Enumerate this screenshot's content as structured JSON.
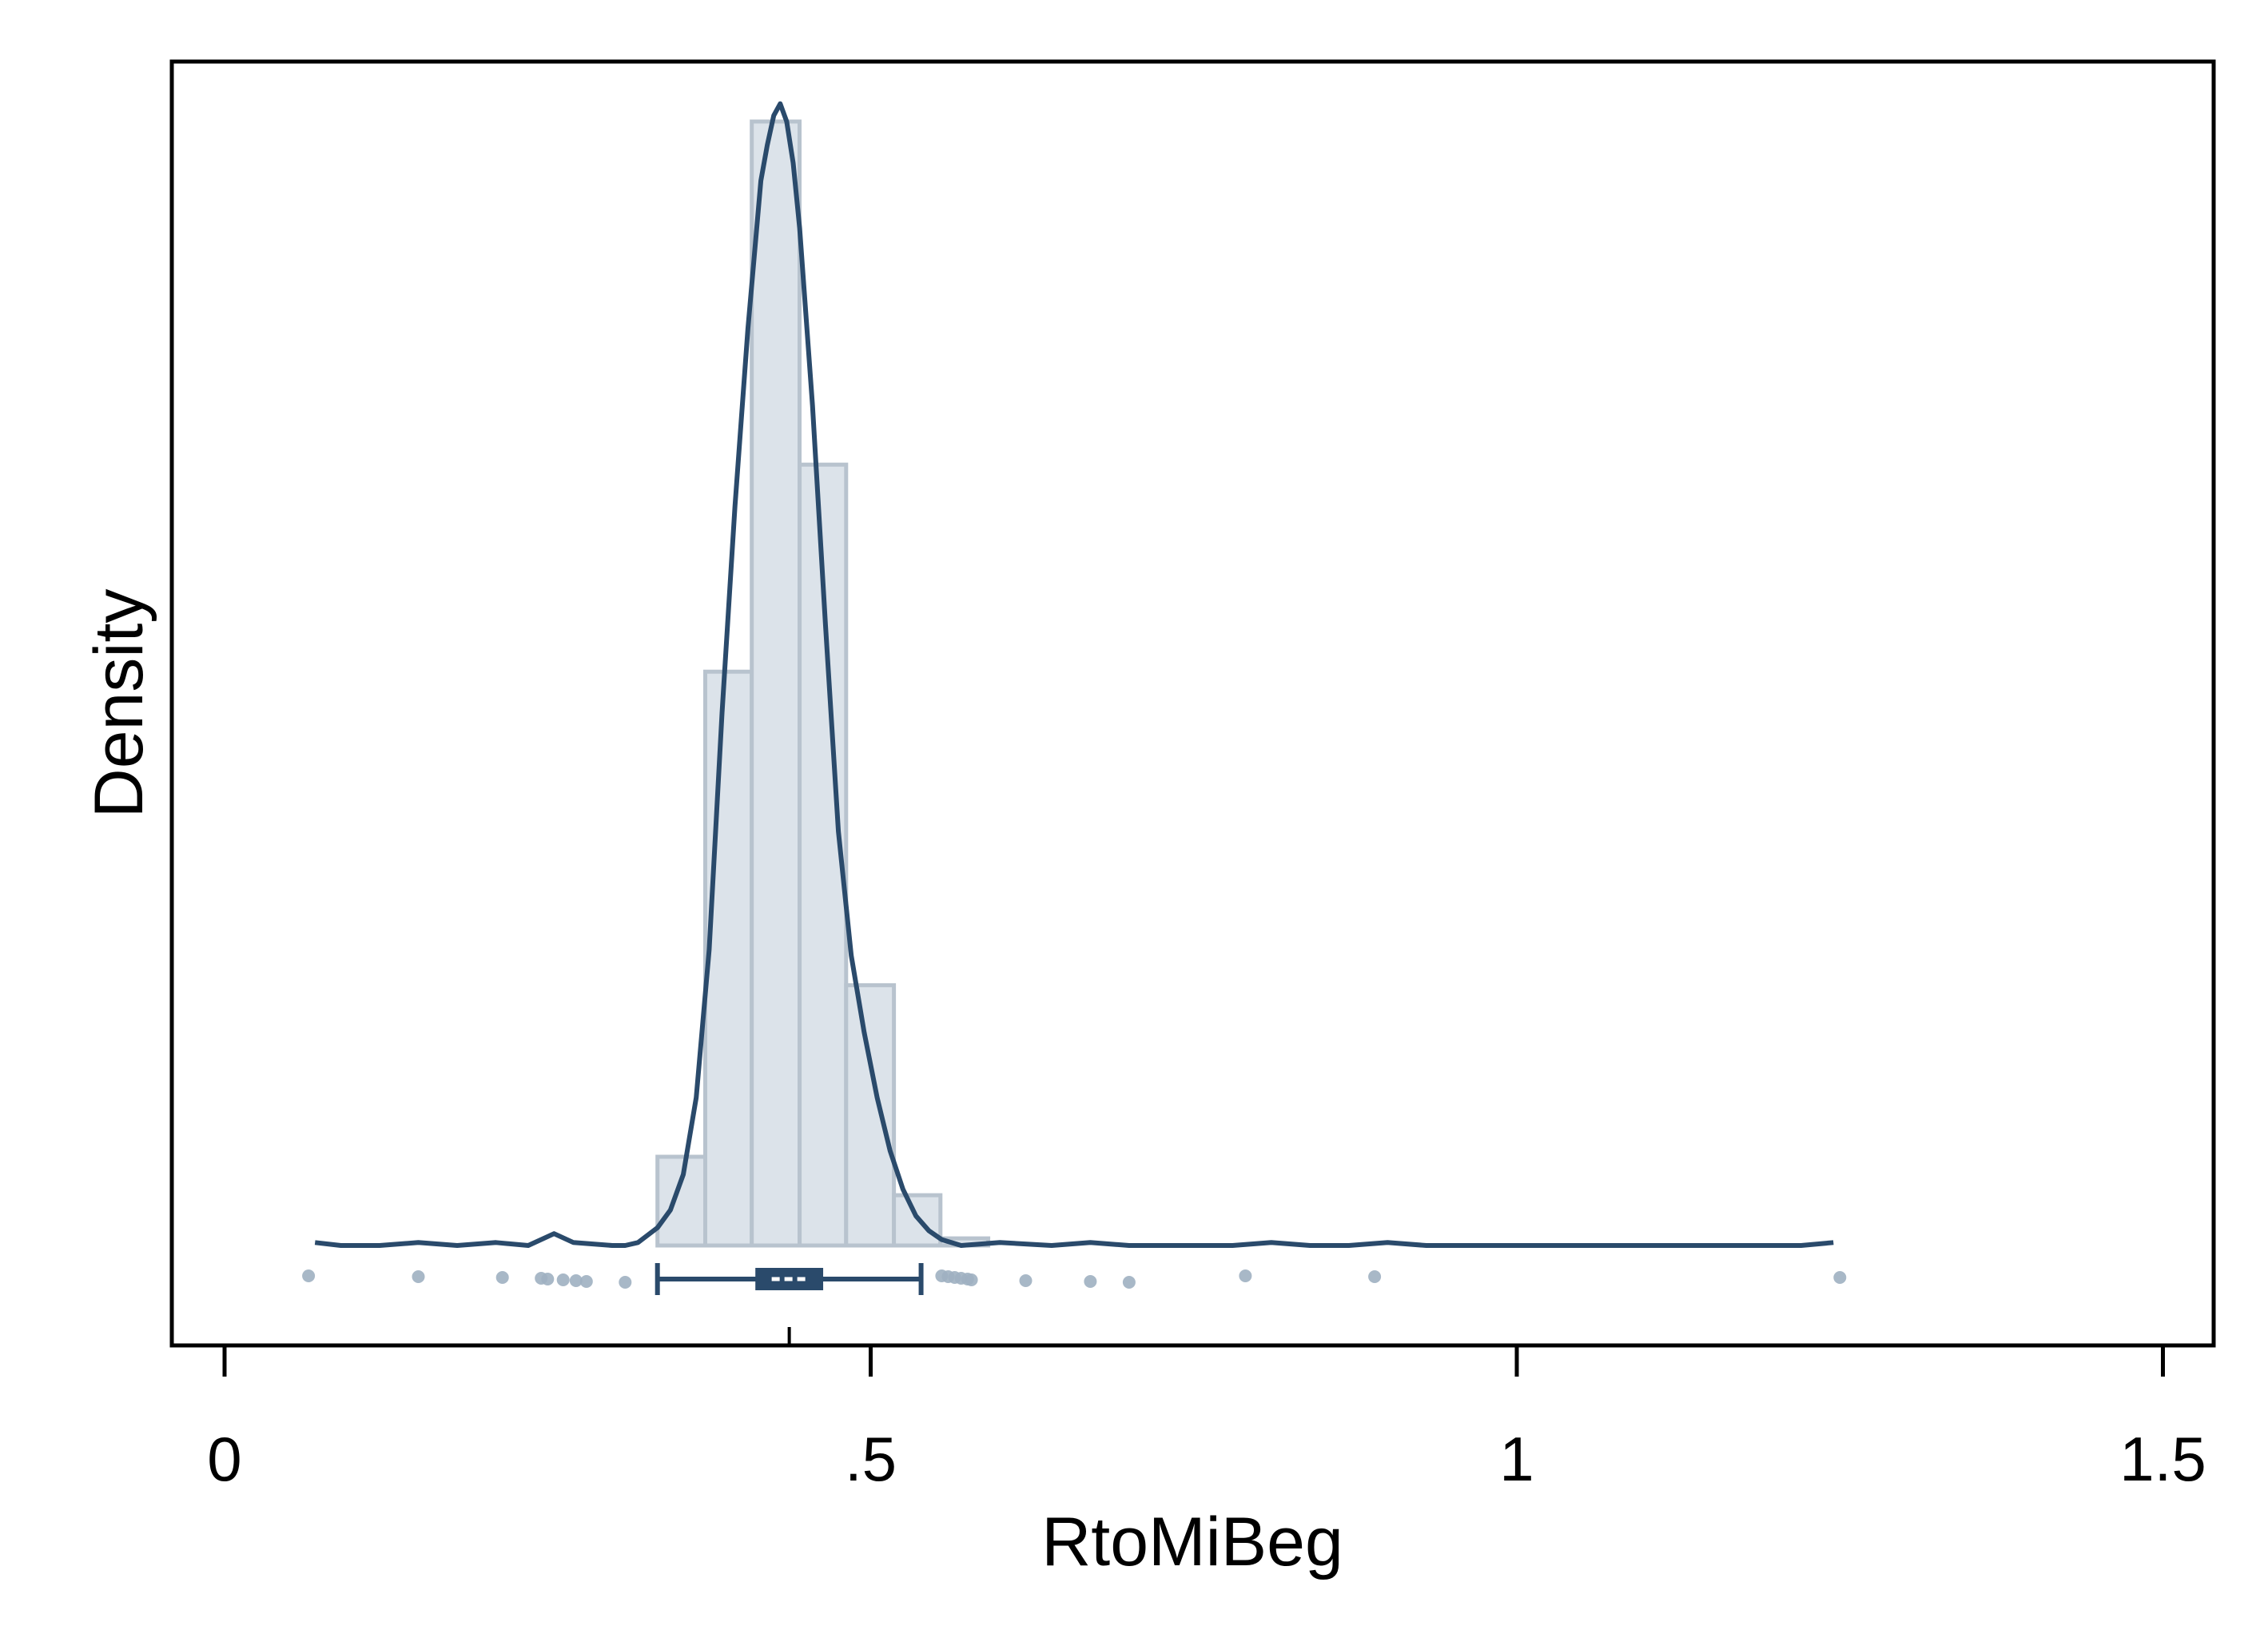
{
  "chart_data": {
    "type": "histogram",
    "xlabel": "RtoMiBeg",
    "ylabel": "Density",
    "xlim": [
      -0.04,
      1.54
    ],
    "x_ticks": [
      {
        "value": 0,
        "label": "0"
      },
      {
        "value": 0.5,
        "label": ".5"
      },
      {
        "value": 1,
        "label": "1"
      },
      {
        "value": 1.5,
        "label": "1.5"
      }
    ],
    "y_ticks_shown": false,
    "grid": false,
    "legend": "none",
    "histogram": {
      "bin_width": 0.0365,
      "bins": [
        {
          "x0": 0.335,
          "x1": 0.372,
          "density": 1.5
        },
        {
          "x0": 0.372,
          "x1": 0.408,
          "density": 9.7
        },
        {
          "x0": 0.408,
          "x1": 0.445,
          "density": 19.0
        },
        {
          "x0": 0.445,
          "x1": 0.481,
          "density": 13.2
        },
        {
          "x0": 0.481,
          "x1": 0.518,
          "density": 4.4
        },
        {
          "x0": 0.518,
          "x1": 0.554,
          "density": 0.85
        },
        {
          "x0": 0.554,
          "x1": 0.591,
          "density": 0.12
        }
      ]
    },
    "density_curve": [
      [
        0.07,
        0.05
      ],
      [
        0.09,
        0.0
      ],
      [
        0.12,
        0.0
      ],
      [
        0.15,
        0.05
      ],
      [
        0.18,
        0.0
      ],
      [
        0.21,
        0.05
      ],
      [
        0.235,
        0.0
      ],
      [
        0.255,
        0.2
      ],
      [
        0.27,
        0.05
      ],
      [
        0.3,
        0.0
      ],
      [
        0.31,
        0.0
      ],
      [
        0.32,
        0.05
      ],
      [
        0.335,
        0.3
      ],
      [
        0.345,
        0.6
      ],
      [
        0.355,
        1.2
      ],
      [
        0.365,
        2.5
      ],
      [
        0.375,
        5.0
      ],
      [
        0.385,
        9.0
      ],
      [
        0.395,
        12.5
      ],
      [
        0.405,
        15.5
      ],
      [
        0.415,
        18.0
      ],
      [
        0.42,
        18.6
      ],
      [
        0.425,
        19.1
      ],
      [
        0.43,
        19.3
      ],
      [
        0.435,
        19.0
      ],
      [
        0.44,
        18.3
      ],
      [
        0.445,
        17.2
      ],
      [
        0.455,
        14.2
      ],
      [
        0.465,
        10.5
      ],
      [
        0.475,
        7.0
      ],
      [
        0.485,
        4.9
      ],
      [
        0.495,
        3.6
      ],
      [
        0.505,
        2.5
      ],
      [
        0.515,
        1.6
      ],
      [
        0.525,
        0.95
      ],
      [
        0.535,
        0.5
      ],
      [
        0.545,
        0.25
      ],
      [
        0.555,
        0.1
      ],
      [
        0.57,
        0.0
      ],
      [
        0.6,
        0.05
      ],
      [
        0.64,
        0.0
      ],
      [
        0.67,
        0.05
      ],
      [
        0.7,
        0.0
      ],
      [
        0.78,
        0.0
      ],
      [
        0.81,
        0.05
      ],
      [
        0.84,
        0.0
      ],
      [
        0.87,
        0.0
      ],
      [
        0.9,
        0.05
      ],
      [
        0.93,
        0.0
      ],
      [
        1.0,
        0.0
      ],
      [
        1.1,
        0.0
      ],
      [
        1.22,
        0.0
      ],
      [
        1.245,
        0.05
      ]
    ],
    "boxplot": {
      "whisker_low": 0.335,
      "q1": 0.412,
      "median": 0.437,
      "q3": 0.462,
      "whisker_high": 0.539,
      "mean": 0.437
    },
    "outliers": [
      0.065,
      0.15,
      0.215,
      0.245,
      0.25,
      0.262,
      0.272,
      0.28,
      0.31,
      0.555,
      0.56,
      0.565,
      0.57,
      0.575,
      0.578,
      0.62,
      0.67,
      0.7,
      0.79,
      0.89,
      1.25
    ],
    "colors": {
      "bar_fill": "#dce3ea",
      "bar_stroke": "#b8c3ce",
      "curve": "#2a4a6b",
      "box": "#2a4a6b",
      "outlier": "#9fb0c1"
    }
  }
}
